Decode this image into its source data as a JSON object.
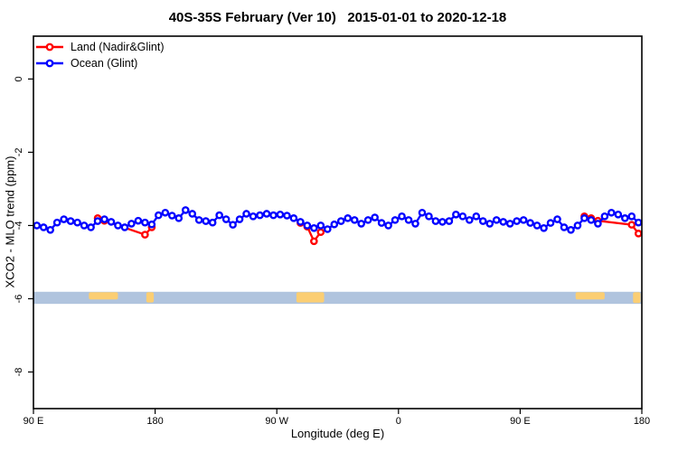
{
  "title": "40S-35S February (Ver 10)   2015-01-01 to 2020-12-18",
  "legend": {
    "items": [
      {
        "label": "Land (Nadir&Glint)",
        "color": "#ff0000"
      },
      {
        "label": "Ocean (Glint)",
        "color": "#0000ff"
      }
    ]
  },
  "axes": {
    "x": {
      "title": "Longitude (deg E)",
      "ticks": [
        {
          "v": 90,
          "label": "90 E"
        },
        {
          "v": 180,
          "label": "180"
        },
        {
          "v": 270,
          "label": "90 W"
        },
        {
          "v": 360,
          "label": "0"
        },
        {
          "v": 450,
          "label": "90 E"
        },
        {
          "v": 540,
          "label": "180"
        }
      ]
    },
    "y": {
      "title": "XCO2 - MLO trend (ppm)",
      "ticks": [
        {
          "v": 0,
          "label": "0"
        },
        {
          "v": -2,
          "label": "-2"
        },
        {
          "v": -4,
          "label": "-4"
        },
        {
          "v": -6,
          "label": "-6"
        },
        {
          "v": -8,
          "label": "-8"
        }
      ]
    }
  },
  "chart_data": {
    "type": "line",
    "title": "40S-35S February (Ver 10)   2015-01-01 to 2020-12-18",
    "xlabel": "Longitude (deg E)",
    "ylabel": "XCO2 - MLO trend (ppm)",
    "xlim": [
      90,
      540
    ],
    "ylim": [
      -9.0,
      1.17
    ],
    "x_unit": "deg E, wrapped axis: 90E → 180 → 90W → 0 → 90E → 180",
    "grid": false,
    "legend_position": "top-left",
    "series": [
      {
        "name": "Land (Nadir&Glint)",
        "color": "#ff0000",
        "marker": "open-circle",
        "segments": [
          [
            [
              137.5,
              -3.8
            ],
            [
              142.5,
              -3.87
            ],
            [
              172.5,
              -4.25
            ],
            [
              177.5,
              -4.05
            ]
          ],
          [
            [
              287.5,
              -3.93
            ],
            [
              292.5,
              -4.03
            ],
            [
              297.5,
              -4.43
            ],
            [
              302.5,
              -4.18
            ]
          ],
          [
            [
              497.5,
              -3.75
            ],
            [
              502.5,
              -3.8
            ],
            [
              507.5,
              -3.87
            ],
            [
              532.5,
              -3.98
            ],
            [
              537.5,
              -4.22
            ]
          ]
        ]
      },
      {
        "name": "Ocean (Glint)",
        "color": "#0000ff",
        "marker": "open-circle",
        "x": [
          92.5,
          97.5,
          102.5,
          107.5,
          112.5,
          117.5,
          122.5,
          127.5,
          132.5,
          137.5,
          142.5,
          147.5,
          152.5,
          157.5,
          162.5,
          167.5,
          172.5,
          177.5,
          182.5,
          187.5,
          192.5,
          197.5,
          202.5,
          207.5,
          212.5,
          217.5,
          222.5,
          227.5,
          232.5,
          237.5,
          242.5,
          247.5,
          252.5,
          257.5,
          262.5,
          267.5,
          272.5,
          277.5,
          282.5,
          287.5,
          292.5,
          297.5,
          302.5,
          307.5,
          312.5,
          317.5,
          322.5,
          327.5,
          332.5,
          337.5,
          342.5,
          347.5,
          352.5,
          357.5,
          362.5,
          367.5,
          372.5,
          377.5,
          382.5,
          387.5,
          392.5,
          397.5,
          402.5,
          407.5,
          412.5,
          417.5,
          422.5,
          427.5,
          432.5,
          437.5,
          442.5,
          447.5,
          452.5,
          457.5,
          462.5,
          467.5,
          472.5,
          477.5,
          482.5,
          487.5,
          492.5,
          497.5,
          502.5,
          507.5,
          512.5,
          517.5,
          522.5,
          527.5,
          532.5,
          537.5
        ],
        "values": [
          -4.0,
          -4.05,
          -4.12,
          -3.92,
          -3.83,
          -3.88,
          -3.92,
          -4.0,
          -4.05,
          -3.88,
          -3.83,
          -3.9,
          -4.0,
          -4.05,
          -3.95,
          -3.87,
          -3.92,
          -3.97,
          -3.72,
          -3.65,
          -3.73,
          -3.8,
          -3.58,
          -3.68,
          -3.85,
          -3.88,
          -3.92,
          -3.72,
          -3.83,
          -3.98,
          -3.83,
          -3.68,
          -3.75,
          -3.72,
          -3.68,
          -3.72,
          -3.7,
          -3.73,
          -3.8,
          -3.9,
          -4.0,
          -4.07,
          -4.0,
          -4.1,
          -3.97,
          -3.88,
          -3.8,
          -3.85,
          -3.95,
          -3.85,
          -3.78,
          -3.93,
          -4.0,
          -3.85,
          -3.75,
          -3.85,
          -3.95,
          -3.65,
          -3.75,
          -3.88,
          -3.9,
          -3.88,
          -3.7,
          -3.75,
          -3.85,
          -3.75,
          -3.88,
          -3.95,
          -3.85,
          -3.9,
          -3.95,
          -3.88,
          -3.85,
          -3.93,
          -4.0,
          -4.07,
          -3.93,
          -3.83,
          -4.05,
          -4.12,
          -4.0,
          -3.8,
          -3.85,
          -3.95,
          -3.75,
          -3.65,
          -3.7,
          -3.8,
          -3.75,
          -3.92
        ]
      }
    ],
    "map_strip": {
      "description": "latitude-band world map strip (ocean/land) centered at y = -6",
      "y_top": -5.81,
      "y_bottom": -6.14,
      "sea_color": "#b0c4de",
      "land_color": "#fbce73",
      "land_segments": [
        {
          "from": 131.0,
          "to": 152.5,
          "h": 0.6
        },
        {
          "from": 173.5,
          "to": 179.0,
          "h": 0.85
        },
        {
          "from": 284.5,
          "to": 305.0,
          "h": 0.85
        },
        {
          "from": 491.0,
          "to": 512.5,
          "h": 0.6
        },
        {
          "from": 533.5,
          "to": 539.0,
          "h": 0.9
        }
      ]
    },
    "plot_colors": {
      "box": "#000000",
      "background": "#ffffff",
      "marker_fill": "#ffffff"
    }
  }
}
